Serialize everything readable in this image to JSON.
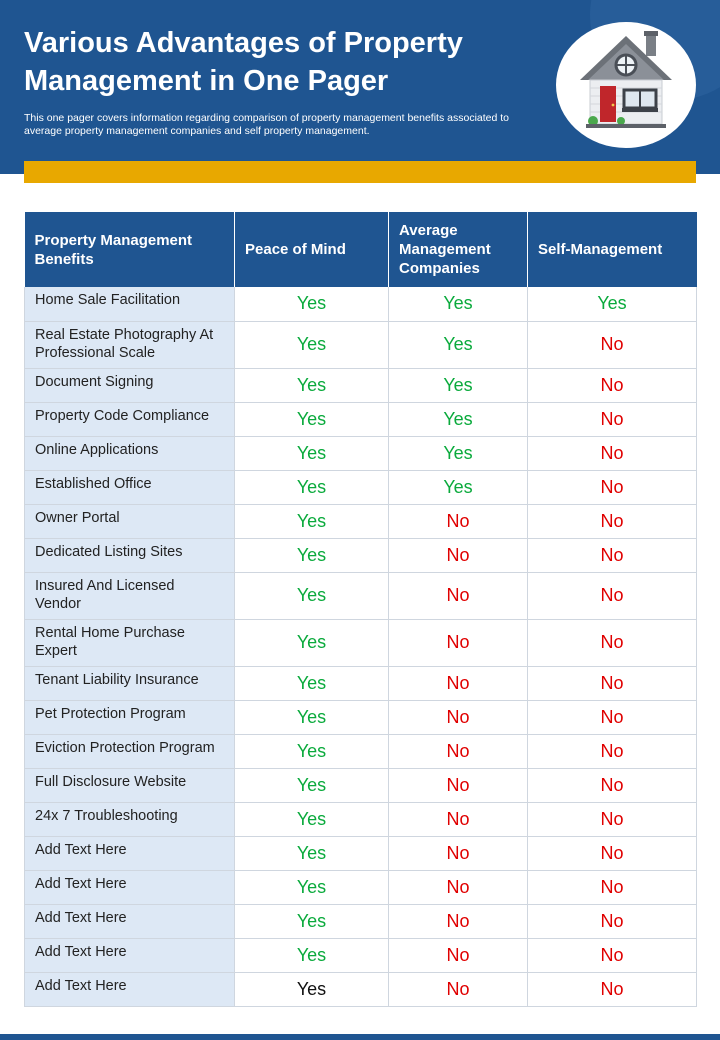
{
  "header": {
    "title": "Various Advantages of Property Management in One Pager",
    "subtitle": "This one pager covers information regarding comparison of property management benefits associated to average property management companies and self property management."
  },
  "colors": {
    "brand_blue": "#1f5591",
    "accent_yellow": "#e8a800",
    "yes_green": "#0aaa3c",
    "no_red": "#e00000",
    "benefit_bg": "#dde8f5"
  },
  "icons": {
    "header_illustration": "house-icon"
  },
  "table": {
    "headers": [
      "Property Management Benefits",
      "Peace of Mind",
      "Average Management Companies",
      "Self-Management"
    ],
    "rows": [
      {
        "benefit": "Home Sale Facilitation",
        "peace": "Yes",
        "average": "Yes",
        "self": "Yes"
      },
      {
        "benefit": "Real Estate Photography At Professional Scale",
        "peace": "Yes",
        "average": "Yes",
        "self": "No"
      },
      {
        "benefit": "Document Signing",
        "peace": "Yes",
        "average": "Yes",
        "self": "No"
      },
      {
        "benefit": "Property Code Compliance",
        "peace": "Yes",
        "average": "Yes",
        "self": "No"
      },
      {
        "benefit": "Online Applications",
        "peace": "Yes",
        "average": "Yes",
        "self": "No"
      },
      {
        "benefit": "Established Office",
        "peace": "Yes",
        "average": "Yes",
        "self": "No"
      },
      {
        "benefit": "Owner Portal",
        "peace": "Yes",
        "average": "No",
        "self": "No"
      },
      {
        "benefit": "Dedicated Listing Sites",
        "peace": "Yes",
        "average": "No",
        "self": "No"
      },
      {
        "benefit": "Insured And Licensed Vendor",
        "peace": "Yes",
        "average": "No",
        "self": "No"
      },
      {
        "benefit": "Rental Home Purchase Expert",
        "peace": "Yes",
        "average": "No",
        "self": "No"
      },
      {
        "benefit": "Tenant Liability Insurance",
        "peace": "Yes",
        "average": "No",
        "self": "No"
      },
      {
        "benefit": "Pet Protection Program",
        "peace": "Yes",
        "average": "No",
        "self": "No"
      },
      {
        "benefit": "Eviction Protection Program",
        "peace": "Yes",
        "average": "No",
        "self": "No"
      },
      {
        "benefit": "Full Disclosure Website",
        "peace": "Yes",
        "average": "No",
        "self": "No"
      },
      {
        "benefit": "24x 7 Troubleshooting",
        "peace": "Yes",
        "average": "No",
        "self": "No"
      },
      {
        "benefit": "Add Text Here",
        "peace": "Yes",
        "average": "No",
        "self": "No"
      },
      {
        "benefit": "Add Text Here",
        "peace": "Yes",
        "average": "No",
        "self": "No"
      },
      {
        "benefit": "Add Text Here",
        "peace": "Yes",
        "average": "No",
        "self": "No"
      },
      {
        "benefit": "Add Text Here",
        "peace": "Yes",
        "average": "No",
        "self": "No"
      },
      {
        "benefit": "Add Text Here",
        "peace": "Yes",
        "average": "No",
        "self": "No"
      }
    ]
  }
}
